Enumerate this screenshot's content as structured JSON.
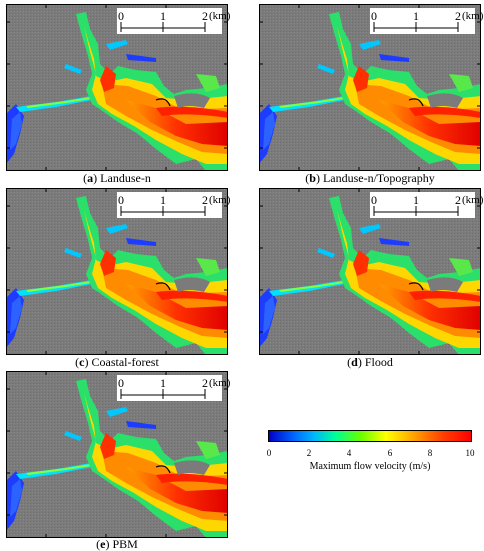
{
  "panels": [
    {
      "letter": "a",
      "label": "Landuse-n"
    },
    {
      "letter": "b",
      "label": "Landuse-n/Topography"
    },
    {
      "letter": "c",
      "label": "Coastal-forest"
    },
    {
      "letter": "d",
      "label": "Flood"
    },
    {
      "letter": "e",
      "label": "PBM"
    }
  ],
  "scale_bar": {
    "ticks": [
      "0",
      "1",
      "2"
    ],
    "unit": "(km)"
  },
  "colorbar": {
    "ticks": [
      "0",
      "2",
      "4",
      "6",
      "8",
      "10"
    ],
    "label": "Maximum flow velocity (m/s)",
    "colors": [
      "#0000c8",
      "#0064ff",
      "#00b4ff",
      "#00ff96",
      "#64ff00",
      "#ffff00",
      "#ffa000",
      "#ff4000",
      "#ff0000"
    ]
  },
  "colors": {
    "land": "#7a7a7a",
    "sea_low": "#1e3cff"
  }
}
